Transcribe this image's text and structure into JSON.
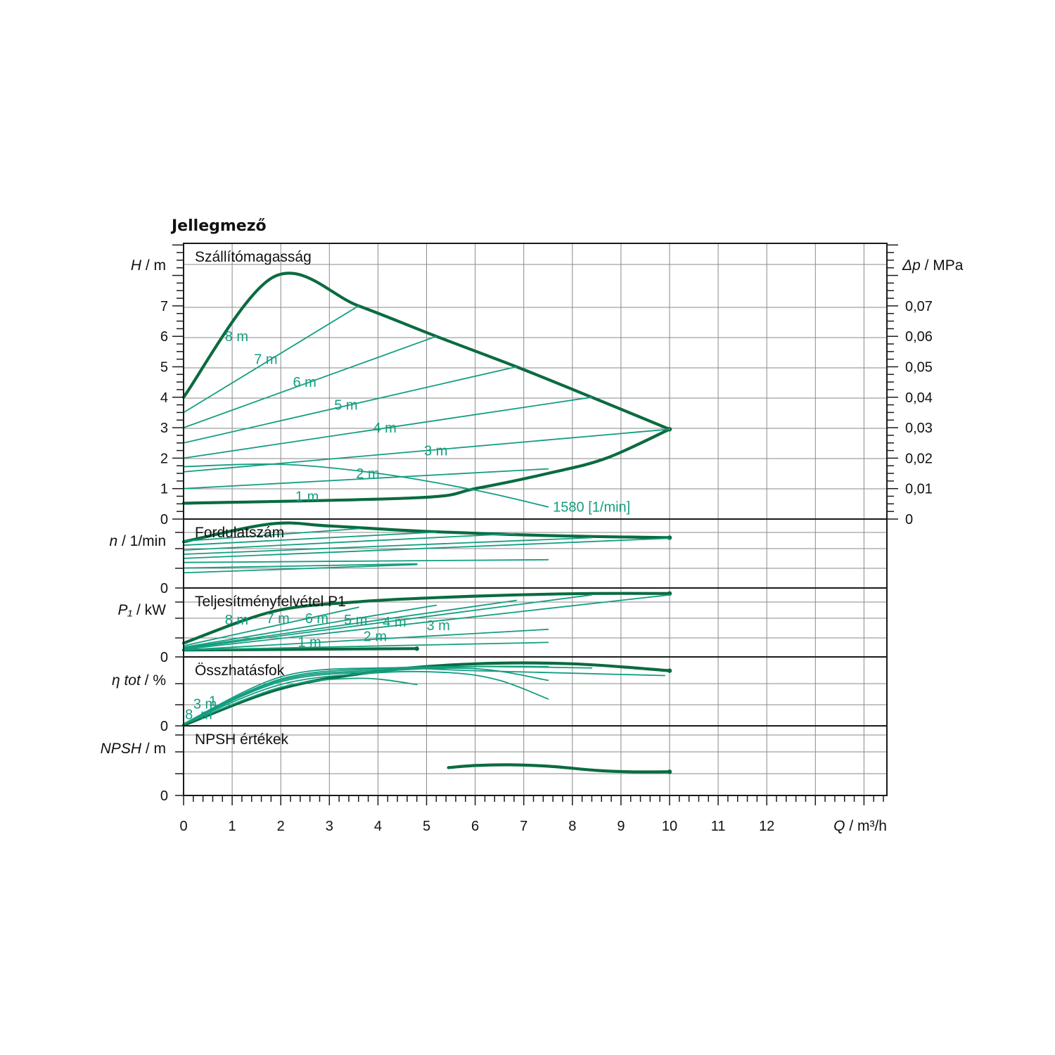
{
  "chart_data": {
    "type": "line",
    "title": "Jellegmező",
    "colors": {
      "thin": "#139e80",
      "thick": "#0b6b40"
    },
    "x": {
      "label_symbol": "Q",
      "label_unit": "/ m³/h",
      "ticks": [
        0,
        1,
        2,
        3,
        4,
        5,
        6,
        7,
        8,
        9,
        10,
        11,
        12
      ],
      "range": [
        0,
        14.5
      ]
    },
    "grid": true,
    "panels": [
      {
        "key": "head",
        "title": "Szállítómagasság",
        "ylabel_symbol": "H",
        "ylabel_unit": "/ m",
        "ylim": [
          0,
          9
        ],
        "yticks": [
          0,
          1,
          2,
          3,
          4,
          5,
          6,
          7
        ],
        "right_axis": {
          "label_symbol": "Δp",
          "label_unit": "/ MPa",
          "ticks": [
            {
              "value": 0,
              "label": "0"
            },
            {
              "value": 1,
              "label": "0,01"
            },
            {
              "value": 2,
              "label": "0,02"
            },
            {
              "value": 3,
              "label": "0,03"
            },
            {
              "value": 4,
              "label": "0,04"
            },
            {
              "value": 5,
              "label": "0,05"
            },
            {
              "value": 6,
              "label": "0,06"
            },
            {
              "value": 7,
              "label": "0,07"
            }
          ]
        },
        "series": [
          {
            "name": "8 m",
            "weight": "thick",
            "points": [
              [
                0,
                4
              ],
              [
                1.85,
                7.95
              ],
              [
                3.6,
                7.0
              ],
              [
                5.2,
                6.0
              ],
              [
                6.85,
                5.0
              ],
              [
                8.4,
                4.0
              ],
              [
                10,
                2.95
              ]
            ]
          },
          {
            "weight": "thick",
            "points": [
              [
                0,
                0.52
              ],
              [
                4.8,
                0.7
              ],
              [
                6.0,
                1.0
              ],
              [
                7.5,
                1.5
              ],
              [
                8.7,
                2.0
              ],
              [
                10,
                2.95
              ]
            ]
          },
          {
            "name": "7 m",
            "weight": "thin",
            "points": [
              [
                0,
                3.5
              ],
              [
                3.6,
                7.0
              ]
            ]
          },
          {
            "name": "6 m",
            "weight": "thin",
            "points": [
              [
                0,
                3.0
              ],
              [
                5.2,
                6.0
              ]
            ]
          },
          {
            "name": "5 m",
            "weight": "thin",
            "points": [
              [
                0,
                2.5
              ],
              [
                6.85,
                5.0
              ]
            ]
          },
          {
            "name": "4 m",
            "weight": "thin",
            "points": [
              [
                0,
                2.0
              ],
              [
                8.4,
                4.0
              ]
            ]
          },
          {
            "name": "3 m",
            "weight": "thin",
            "points": [
              [
                0,
                1.55
              ],
              [
                10,
                2.95
              ]
            ]
          },
          {
            "name": "2 m",
            "weight": "thin",
            "points": [
              [
                0,
                1.0
              ],
              [
                7.5,
                1.65
              ]
            ]
          },
          {
            "name": "1580 [1/min]",
            "weight": "thin",
            "points": [
              [
                0,
                1.72
              ],
              [
                2.0,
                1.8
              ],
              [
                4.0,
                1.5
              ],
              [
                6.0,
                0.95
              ],
              [
                7.5,
                0.4
              ]
            ]
          }
        ],
        "labels": [
          {
            "text": "8 m",
            "x": 0.85,
            "y": 6.0
          },
          {
            "text": "7 m",
            "x": 1.45,
            "y": 5.25
          },
          {
            "text": "6 m",
            "x": 2.25,
            "y": 4.5
          },
          {
            "text": "5 m",
            "x": 3.1,
            "y": 3.75
          },
          {
            "text": "4 m",
            "x": 3.9,
            "y": 3.0
          },
          {
            "text": "3 m",
            "x": 4.95,
            "y": 2.25
          },
          {
            "text": "2 m",
            "x": 3.55,
            "y": 1.5
          },
          {
            "text": "1 m",
            "x": 2.3,
            "y": 0.75
          },
          {
            "text": "1580 [1/min]",
            "x": 7.6,
            "y": 0.4
          }
        ]
      },
      {
        "key": "speed",
        "title": "Fordulatszám",
        "ylabel_symbol": "n",
        "ylabel_unit": "/ 1/min",
        "ylim": [
          0,
          10
        ],
        "yticks": [
          0
        ],
        "series": [
          {
            "weight": "thick",
            "points": [
              [
                0,
                6.7
              ],
              [
                1.8,
                9.3
              ],
              [
                3.0,
                9.0
              ],
              [
                5.0,
                8.2
              ],
              [
                7.5,
                7.6
              ],
              [
                10,
                7.3
              ]
            ]
          },
          {
            "weight": "thin",
            "points": [
              [
                0,
                6.8
              ],
              [
                3.6,
                8.6
              ]
            ]
          },
          {
            "weight": "thin",
            "points": [
              [
                0,
                6.2
              ],
              [
                5.2,
                8.1
              ]
            ]
          },
          {
            "weight": "thin",
            "points": [
              [
                0,
                5.5
              ],
              [
                6.85,
                7.9
              ]
            ]
          },
          {
            "weight": "thin",
            "points": [
              [
                0,
                4.9
              ],
              [
                8.4,
                7.3
              ]
            ]
          },
          {
            "weight": "thin",
            "points": [
              [
                0,
                4.3
              ],
              [
                10,
                7.2
              ]
            ]
          },
          {
            "weight": "thin",
            "points": [
              [
                0,
                3.7
              ],
              [
                7.5,
                4.1
              ]
            ]
          },
          {
            "weight": "thin",
            "points": [
              [
                0,
                2.9
              ],
              [
                4.8,
                3.5
              ]
            ]
          },
          {
            "weight": "thin",
            "points": [
              [
                0,
                2.2
              ],
              [
                4.8,
                3.4
              ]
            ]
          }
        ]
      },
      {
        "key": "power",
        "title": "Teljesítményfelvétel P1",
        "ylabel_symbol": "P₁",
        "ylabel_unit": "/ kW",
        "ylim": [
          0,
          10
        ],
        "yticks": [
          0
        ],
        "series": [
          {
            "weight": "thick",
            "points": [
              [
                0,
                2.0
              ],
              [
                1.85,
                6.6
              ],
              [
                3.6,
                8.0
              ],
              [
                5.2,
                8.6
              ],
              [
                6.85,
                9.0
              ],
              [
                8.4,
                9.2
              ],
              [
                10,
                9.2
              ]
            ]
          },
          {
            "weight": "thick",
            "points": [
              [
                0,
                1.0
              ],
              [
                4.8,
                1.2
              ]
            ]
          },
          {
            "weight": "thin",
            "points": [
              [
                0,
                1.6
              ],
              [
                3.6,
                7.2
              ]
            ]
          },
          {
            "weight": "thin",
            "points": [
              [
                0,
                1.4
              ],
              [
                5.2,
                7.5
              ]
            ]
          },
          {
            "weight": "thin",
            "points": [
              [
                0,
                1.3
              ],
              [
                6.85,
                8.2
              ]
            ]
          },
          {
            "weight": "thin",
            "points": [
              [
                0,
                1.2
              ],
              [
                8.4,
                9.0
              ]
            ]
          },
          {
            "weight": "thin",
            "points": [
              [
                0,
                1.1
              ],
              [
                10,
                9.0
              ]
            ]
          },
          {
            "weight": "thin",
            "points": [
              [
                0,
                1.0
              ],
              [
                7.5,
                4.0
              ]
            ]
          },
          {
            "weight": "thin",
            "points": [
              [
                0,
                1.0
              ],
              [
                7.5,
                2.1
              ]
            ]
          }
        ],
        "labels": [
          {
            "text": "8 m",
            "x": 0.85,
            "y": 5.4
          },
          {
            "text": "7 m",
            "x": 1.7,
            "y": 5.6
          },
          {
            "text": "6 m",
            "x": 2.5,
            "y": 5.6
          },
          {
            "text": "5 m",
            "x": 3.3,
            "y": 5.4
          },
          {
            "text": "4 m",
            "x": 4.1,
            "y": 5.1
          },
          {
            "text": "3 m",
            "x": 5.0,
            "y": 4.6
          },
          {
            "text": "2 m",
            "x": 3.7,
            "y": 3.0
          },
          {
            "text": "1 m",
            "x": 2.35,
            "y": 2.2
          }
        ]
      },
      {
        "key": "efficiency",
        "title": "Összhatásfok",
        "ylabel_symbol": "η tot",
        "ylabel_unit": "/ %",
        "ylim": [
          0,
          10
        ],
        "yticks": [
          0
        ],
        "series": [
          {
            "weight": "thick",
            "points": [
              [
                0,
                0.1
              ],
              [
                2,
                5.4
              ],
              [
                4,
                7.9
              ],
              [
                6,
                9.0
              ],
              [
                8,
                9.0
              ],
              [
                10,
                8.0
              ]
            ]
          },
          {
            "weight": "thin",
            "points": [
              [
                0,
                0.2
              ],
              [
                2,
                5.6
              ],
              [
                3.6,
                6.9
              ],
              [
                4.8,
                6.0
              ]
            ]
          },
          {
            "weight": "thin",
            "points": [
              [
                0,
                0.3
              ],
              [
                2,
                6.0
              ],
              [
                4,
                7.7
              ],
              [
                5.5,
                7.7
              ],
              [
                6.5,
                6.6
              ],
              [
                7.5,
                3.9
              ]
            ]
          },
          {
            "weight": "thin",
            "points": [
              [
                0,
                0.3
              ],
              [
                2,
                6.4
              ],
              [
                4,
                7.9
              ],
              [
                6,
                8.3
              ],
              [
                7.5,
                6.6
              ]
            ]
          },
          {
            "weight": "thin",
            "points": [
              [
                0,
                0.3
              ],
              [
                2,
                6.6
              ],
              [
                4,
                8.1
              ],
              [
                6,
                8.6
              ],
              [
                7.5,
                8.6
              ]
            ]
          },
          {
            "weight": "thin",
            "points": [
              [
                0,
                0.3
              ],
              [
                2,
                6.8
              ],
              [
                4,
                8.3
              ],
              [
                6,
                8.6
              ],
              [
                8.4,
                8.4
              ]
            ]
          },
          {
            "weight": "thin",
            "points": [
              [
                0,
                0.3
              ],
              [
                2,
                7.1
              ],
              [
                4,
                8.4
              ],
              [
                6,
                8.0
              ],
              [
                9.9,
                7.3
              ]
            ]
          }
        ],
        "labels": [
          {
            "text": "8",
            "x": 0.03,
            "y": 1.7
          },
          {
            "text": "m",
            "x": 0.35,
            "y": 1.7
          },
          {
            "text": "3 m",
            "x": 0.2,
            "y": 3.2
          },
          {
            "text": "1",
            "x": 0.52,
            "y": 3.6
          }
        ]
      },
      {
        "key": "npsh",
        "title": "NPSH értékek",
        "ylabel_symbol": "NPSH",
        "ylabel_unit": "/ m",
        "ylim": [
          0,
          10
        ],
        "yticks": [
          0
        ],
        "series": [
          {
            "weight": "thick",
            "points": [
              [
                5.45,
                4.0
              ],
              [
                6.0,
                4.3
              ],
              [
                6.7,
                4.4
              ],
              [
                7.5,
                4.2
              ],
              [
                8.5,
                3.6
              ],
              [
                9.2,
                3.4
              ],
              [
                10,
                3.4
              ]
            ]
          }
        ]
      }
    ]
  }
}
